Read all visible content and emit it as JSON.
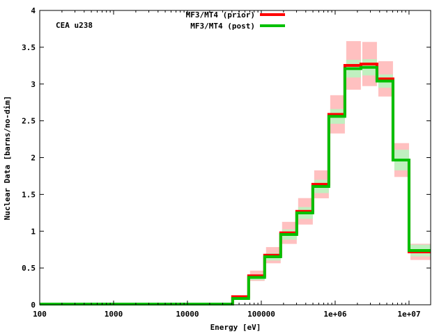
{
  "chart_data": {
    "type": "line",
    "step": true,
    "title": "",
    "annotation": "CEA u238",
    "xlabel": "Energy [eV]",
    "ylabel": "Nuclear Data [barns/no-dim]",
    "xscale": "log",
    "xlim": [
      100,
      19640000
    ],
    "ylim": [
      0,
      4
    ],
    "xticks": [
      100,
      1000,
      10000,
      100000,
      1000000,
      10000000
    ],
    "xtick_labels": [
      "100",
      "1000",
      "10000",
      "100000",
      "1e+06",
      "1e+07"
    ],
    "yticks": [
      0,
      0.5,
      1,
      1.5,
      2,
      2.5,
      3,
      3.5,
      4
    ],
    "ytick_labels": [
      "0",
      "0.5",
      "1",
      "1.5",
      "2",
      "2.5",
      "3",
      "3.5",
      "4"
    ],
    "legend_position": "top-center",
    "bin_edges": [
      100,
      40900,
      67400,
      111000,
      183000,
      302000,
      498000,
      821000,
      1353000,
      2231000,
      3679000,
      6065000,
      10000000,
      19640000
    ],
    "series": [
      {
        "name": "MF3/MT4 (prior)",
        "color": "#ff0000",
        "band_color": "#ffc0c0",
        "values": [
          0.01,
          0.11,
          0.394,
          0.674,
          0.977,
          1.27,
          1.637,
          2.588,
          3.253,
          3.272,
          3.07,
          1.967,
          0.719
        ],
        "uncertainty": [
          0.0,
          0.0,
          0.07,
          0.11,
          0.15,
          0.18,
          0.19,
          0.26,
          0.33,
          0.3,
          0.24,
          0.23,
          0.11
        ]
      },
      {
        "name": "MF3/MT4 (post)",
        "color": "#00c000",
        "band_color": "#c0f0c0",
        "values": [
          0.01,
          0.085,
          0.372,
          0.652,
          0.955,
          1.248,
          1.608,
          2.56,
          3.209,
          3.227,
          3.04,
          1.967,
          0.737
        ],
        "uncertainty": [
          0.0,
          0.0,
          0.035,
          0.05,
          0.07,
          0.08,
          0.09,
          0.1,
          0.12,
          0.11,
          0.09,
          0.14,
          0.08
        ]
      }
    ]
  }
}
